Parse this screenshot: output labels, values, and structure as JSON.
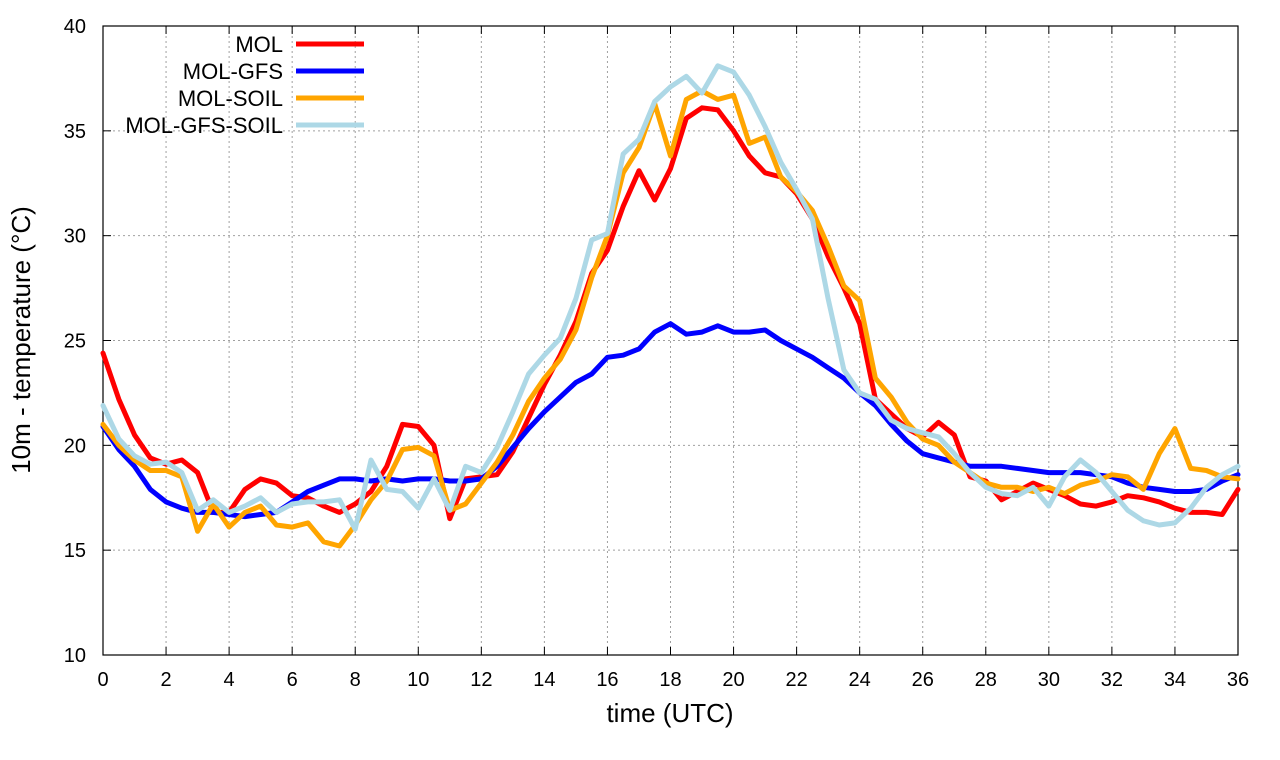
{
  "chart_data": {
    "type": "line",
    "title": "",
    "xlabel": "time (UTC)",
    "ylabel": "10m - temperature (°C)",
    "xlim": [
      0,
      36
    ],
    "ylim": [
      10,
      40
    ],
    "grid": true,
    "legend_position": "top-left",
    "x_ticks": [
      "0",
      "2",
      "4",
      "6",
      "8",
      "10",
      "12",
      "14",
      "16",
      "18",
      "20",
      "22",
      "24",
      "26",
      "28",
      "30",
      "32",
      "34",
      "36"
    ],
    "y_ticks": [
      "10",
      "15",
      "20",
      "25",
      "30",
      "35",
      "40"
    ],
    "series": [
      {
        "name": "MOL",
        "color": "#ff0000",
        "points": [
          [
            0,
            24.4
          ],
          [
            0.5,
            22.2
          ],
          [
            1,
            20.5
          ],
          [
            1.5,
            19.4
          ],
          [
            2,
            19.1
          ],
          [
            2.5,
            19.3
          ],
          [
            3,
            18.7
          ],
          [
            3.5,
            16.8
          ],
          [
            4,
            16.8
          ],
          [
            4.5,
            17.9
          ],
          [
            5,
            18.4
          ],
          [
            5.5,
            18.2
          ],
          [
            6,
            17.6
          ],
          [
            6.5,
            17.5
          ],
          [
            7,
            17.1
          ],
          [
            7.5,
            16.8
          ],
          [
            8,
            17.2
          ],
          [
            8.5,
            17.8
          ],
          [
            9,
            19.0
          ],
          [
            9.5,
            21.0
          ],
          [
            10,
            20.9
          ],
          [
            10.5,
            20.0
          ],
          [
            11,
            16.5
          ],
          [
            11.5,
            18.4
          ],
          [
            12,
            18.5
          ],
          [
            12.5,
            18.6
          ],
          [
            13,
            19.7
          ],
          [
            13.5,
            21.3
          ],
          [
            14,
            22.9
          ],
          [
            14.5,
            24.3
          ],
          [
            15,
            25.9
          ],
          [
            15.5,
            28.2
          ],
          [
            16,
            29.3
          ],
          [
            16.5,
            31.4
          ],
          [
            17,
            33.1
          ],
          [
            17.5,
            31.7
          ],
          [
            18,
            33.2
          ],
          [
            18.5,
            35.6
          ],
          [
            19,
            36.1
          ],
          [
            19.5,
            36.0
          ],
          [
            20,
            35.0
          ],
          [
            20.5,
            33.8
          ],
          [
            21,
            33.0
          ],
          [
            21.5,
            32.8
          ],
          [
            22,
            32.0
          ],
          [
            22.5,
            30.8
          ],
          [
            23,
            29.0
          ],
          [
            23.5,
            27.5
          ],
          [
            24,
            25.8
          ],
          [
            24.5,
            22.2
          ],
          [
            25,
            21.5
          ],
          [
            25.5,
            20.8
          ],
          [
            26,
            20.4
          ],
          [
            26.5,
            21.1
          ],
          [
            27,
            20.5
          ],
          [
            27.5,
            18.5
          ],
          [
            28,
            18.3
          ],
          [
            28.5,
            17.4
          ],
          [
            29,
            17.8
          ],
          [
            29.5,
            18.2
          ],
          [
            30,
            17.9
          ],
          [
            30.5,
            17.6
          ],
          [
            31,
            17.2
          ],
          [
            31.5,
            17.1
          ],
          [
            32,
            17.3
          ],
          [
            32.5,
            17.6
          ],
          [
            33,
            17.5
          ],
          [
            33.5,
            17.3
          ],
          [
            34,
            17.0
          ],
          [
            34.5,
            16.8
          ],
          [
            35,
            16.8
          ],
          [
            35.5,
            16.7
          ],
          [
            36,
            17.9
          ]
        ]
      },
      {
        "name": "MOL-GFS",
        "color": "#0000ff",
        "points": [
          [
            0,
            20.9
          ],
          [
            0.5,
            19.8
          ],
          [
            1,
            19.0
          ],
          [
            1.5,
            17.9
          ],
          [
            2,
            17.3
          ],
          [
            2.5,
            17.0
          ],
          [
            3,
            16.8
          ],
          [
            3.5,
            16.8
          ],
          [
            4,
            16.7
          ],
          [
            4.5,
            16.6
          ],
          [
            5,
            16.7
          ],
          [
            5.5,
            16.8
          ],
          [
            6,
            17.3
          ],
          [
            6.5,
            17.8
          ],
          [
            7,
            18.1
          ],
          [
            7.5,
            18.4
          ],
          [
            8,
            18.4
          ],
          [
            8.5,
            18.3
          ],
          [
            9,
            18.4
          ],
          [
            9.5,
            18.3
          ],
          [
            10,
            18.4
          ],
          [
            10.5,
            18.4
          ],
          [
            11,
            18.3
          ],
          [
            11.5,
            18.3
          ],
          [
            12,
            18.4
          ],
          [
            12.5,
            19.0
          ],
          [
            13,
            19.9
          ],
          [
            13.5,
            20.8
          ],
          [
            14,
            21.6
          ],
          [
            14.5,
            22.3
          ],
          [
            15,
            23.0
          ],
          [
            15.5,
            23.4
          ],
          [
            16,
            24.2
          ],
          [
            16.5,
            24.3
          ],
          [
            17,
            24.6
          ],
          [
            17.5,
            25.4
          ],
          [
            18,
            25.8
          ],
          [
            18.5,
            25.3
          ],
          [
            19,
            25.4
          ],
          [
            19.5,
            25.7
          ],
          [
            20,
            25.4
          ],
          [
            20.5,
            25.4
          ],
          [
            21,
            25.5
          ],
          [
            21.5,
            25.0
          ],
          [
            22,
            24.6
          ],
          [
            22.5,
            24.2
          ],
          [
            23,
            23.7
          ],
          [
            23.5,
            23.2
          ],
          [
            24,
            22.5
          ],
          [
            24.5,
            21.9
          ],
          [
            25,
            21.0
          ],
          [
            25.5,
            20.2
          ],
          [
            26,
            19.6
          ],
          [
            26.5,
            19.4
          ],
          [
            27,
            19.2
          ],
          [
            27.5,
            19.0
          ],
          [
            28,
            19.0
          ],
          [
            28.5,
            19.0
          ],
          [
            29,
            18.9
          ],
          [
            29.5,
            18.8
          ],
          [
            30,
            18.7
          ],
          [
            30.5,
            18.7
          ],
          [
            31,
            18.7
          ],
          [
            31.5,
            18.6
          ],
          [
            32,
            18.5
          ],
          [
            32.5,
            18.2
          ],
          [
            33,
            18.0
          ],
          [
            33.5,
            17.9
          ],
          [
            34,
            17.8
          ],
          [
            34.5,
            17.8
          ],
          [
            35,
            17.9
          ],
          [
            35.5,
            18.3
          ],
          [
            36,
            18.6
          ]
        ]
      },
      {
        "name": "MOL-SOIL",
        "color": "#ffa500",
        "points": [
          [
            0,
            21.0
          ],
          [
            0.5,
            20.0
          ],
          [
            1,
            19.3
          ],
          [
            1.5,
            18.8
          ],
          [
            2,
            18.8
          ],
          [
            2.5,
            18.5
          ],
          [
            3,
            15.9
          ],
          [
            3.5,
            17.2
          ],
          [
            4,
            16.1
          ],
          [
            4.5,
            16.8
          ],
          [
            5,
            17.1
          ],
          [
            5.5,
            16.2
          ],
          [
            6,
            16.1
          ],
          [
            6.5,
            16.3
          ],
          [
            7,
            15.4
          ],
          [
            7.5,
            15.2
          ],
          [
            8,
            16.2
          ],
          [
            8.5,
            17.4
          ],
          [
            9,
            18.3
          ],
          [
            9.5,
            19.8
          ],
          [
            10,
            19.9
          ],
          [
            10.5,
            19.5
          ],
          [
            11,
            16.9
          ],
          [
            11.5,
            17.2
          ],
          [
            12,
            18.2
          ],
          [
            12.5,
            19.2
          ],
          [
            13,
            20.5
          ],
          [
            13.5,
            22.1
          ],
          [
            14,
            23.2
          ],
          [
            14.5,
            24.1
          ],
          [
            15,
            25.5
          ],
          [
            15.5,
            28.0
          ],
          [
            16,
            30.0
          ],
          [
            16.5,
            33.0
          ],
          [
            17,
            34.2
          ],
          [
            17.5,
            36.3
          ],
          [
            18,
            33.8
          ],
          [
            18.5,
            36.5
          ],
          [
            19,
            36.9
          ],
          [
            19.5,
            36.5
          ],
          [
            20,
            36.7
          ],
          [
            20.5,
            34.4
          ],
          [
            21,
            34.7
          ],
          [
            21.5,
            32.8
          ],
          [
            22,
            32.1
          ],
          [
            22.5,
            31.2
          ],
          [
            23,
            29.5
          ],
          [
            23.5,
            27.6
          ],
          [
            24,
            26.9
          ],
          [
            24.5,
            23.2
          ],
          [
            25,
            22.3
          ],
          [
            25.5,
            21.1
          ],
          [
            26,
            20.3
          ],
          [
            26.5,
            20.0
          ],
          [
            27,
            19.2
          ],
          [
            27.5,
            18.7
          ],
          [
            28,
            18.2
          ],
          [
            28.5,
            18.0
          ],
          [
            29,
            18.0
          ],
          [
            29.5,
            17.8
          ],
          [
            30,
            18.0
          ],
          [
            30.5,
            17.7
          ],
          [
            31,
            18.1
          ],
          [
            31.5,
            18.3
          ],
          [
            32,
            18.6
          ],
          [
            32.5,
            18.5
          ],
          [
            33,
            17.9
          ],
          [
            33.5,
            19.6
          ],
          [
            34,
            20.8
          ],
          [
            34.5,
            18.9
          ],
          [
            35,
            18.8
          ],
          [
            35.5,
            18.5
          ],
          [
            36,
            18.4
          ]
        ]
      },
      {
        "name": "MOL-GFS-SOIL",
        "color": "#add8e6",
        "points": [
          [
            0,
            21.9
          ],
          [
            0.5,
            20.3
          ],
          [
            1,
            19.5
          ],
          [
            1.5,
            19.1
          ],
          [
            2,
            19.2
          ],
          [
            2.5,
            18.7
          ],
          [
            3,
            16.9
          ],
          [
            3.5,
            17.4
          ],
          [
            4,
            16.8
          ],
          [
            4.5,
            17.1
          ],
          [
            5,
            17.5
          ],
          [
            5.5,
            16.8
          ],
          [
            6,
            17.2
          ],
          [
            6.5,
            17.3
          ],
          [
            7,
            17.3
          ],
          [
            7.5,
            17.4
          ],
          [
            8,
            16.0
          ],
          [
            8.5,
            19.3
          ],
          [
            9,
            17.9
          ],
          [
            9.5,
            17.8
          ],
          [
            10,
            17.0
          ],
          [
            10.5,
            18.4
          ],
          [
            11,
            16.9
          ],
          [
            11.5,
            19.0
          ],
          [
            12,
            18.7
          ],
          [
            12.5,
            19.9
          ],
          [
            13,
            21.6
          ],
          [
            13.5,
            23.4
          ],
          [
            14,
            24.3
          ],
          [
            14.5,
            25.1
          ],
          [
            15,
            27.0
          ],
          [
            15.5,
            29.8
          ],
          [
            16,
            30.1
          ],
          [
            16.5,
            33.9
          ],
          [
            17,
            34.6
          ],
          [
            17.5,
            36.4
          ],
          [
            18,
            37.1
          ],
          [
            18.5,
            37.6
          ],
          [
            19,
            36.8
          ],
          [
            19.5,
            38.1
          ],
          [
            20,
            37.8
          ],
          [
            20.5,
            36.7
          ],
          [
            21,
            35.2
          ],
          [
            21.5,
            33.5
          ],
          [
            22,
            32.2
          ],
          [
            22.5,
            30.8
          ],
          [
            23,
            27.0
          ],
          [
            23.5,
            23.6
          ],
          [
            24,
            22.5
          ],
          [
            24.5,
            22.2
          ],
          [
            25,
            21.2
          ],
          [
            25.5,
            20.8
          ],
          [
            26,
            20.6
          ],
          [
            26.5,
            20.4
          ],
          [
            27,
            19.6
          ],
          [
            27.5,
            18.7
          ],
          [
            28,
            18.0
          ],
          [
            28.5,
            17.7
          ],
          [
            29,
            17.6
          ],
          [
            29.5,
            18.0
          ],
          [
            30,
            17.1
          ],
          [
            30.5,
            18.5
          ],
          [
            31,
            19.3
          ],
          [
            31.5,
            18.7
          ],
          [
            32,
            17.8
          ],
          [
            32.5,
            16.9
          ],
          [
            33,
            16.4
          ],
          [
            33.5,
            16.2
          ],
          [
            34,
            16.3
          ],
          [
            34.5,
            17.0
          ],
          [
            35,
            18.0
          ],
          [
            35.5,
            18.6
          ],
          [
            36,
            19.0
          ]
        ]
      }
    ]
  }
}
